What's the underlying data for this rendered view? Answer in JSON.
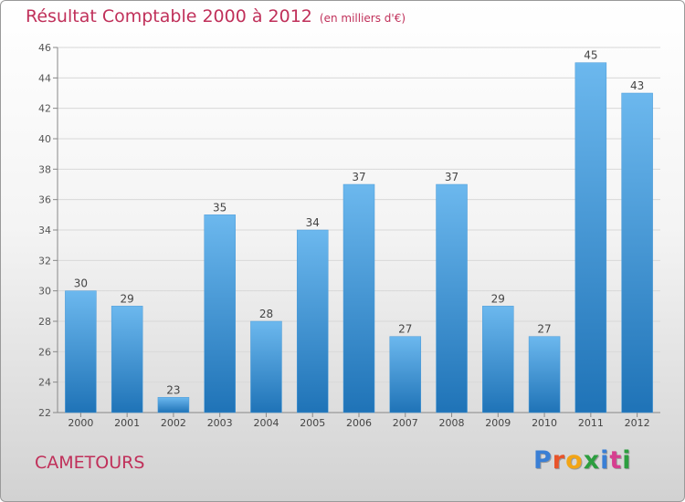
{
  "title": "Résultat Comptable 2000 à 2012",
  "subtitle": "(en milliers d'€)",
  "city": "CAMETOURS",
  "logo": {
    "letters": [
      "P",
      "r",
      "o",
      "x",
      "i",
      "t",
      "i"
    ],
    "colors": [
      "#3a7fd5",
      "#e8542a",
      "#f2a516",
      "#2c9e3f",
      "#3a7fd5",
      "#d63e8f",
      "#2c9e3f"
    ]
  },
  "colors": {
    "bar_light": "#6cb8ee",
    "bar_dark": "#1f73b7",
    "title": "#c0305a",
    "grid": "#d8d8d8"
  },
  "chart_data": {
    "type": "bar",
    "title": "Résultat Comptable 2000 à 2012",
    "xlabel": "",
    "ylabel": "",
    "categories": [
      "2000",
      "2001",
      "2002",
      "2003",
      "2004",
      "2005",
      "2006",
      "2007",
      "2008",
      "2009",
      "2010",
      "2011",
      "2012"
    ],
    "values": [
      30,
      29,
      23,
      35,
      28,
      34,
      37,
      27,
      37,
      29,
      27,
      45,
      43
    ],
    "ylim": [
      22,
      46
    ],
    "yticks": [
      22,
      24,
      26,
      28,
      30,
      32,
      34,
      36,
      38,
      40,
      42,
      44,
      46
    ],
    "grid": true
  }
}
